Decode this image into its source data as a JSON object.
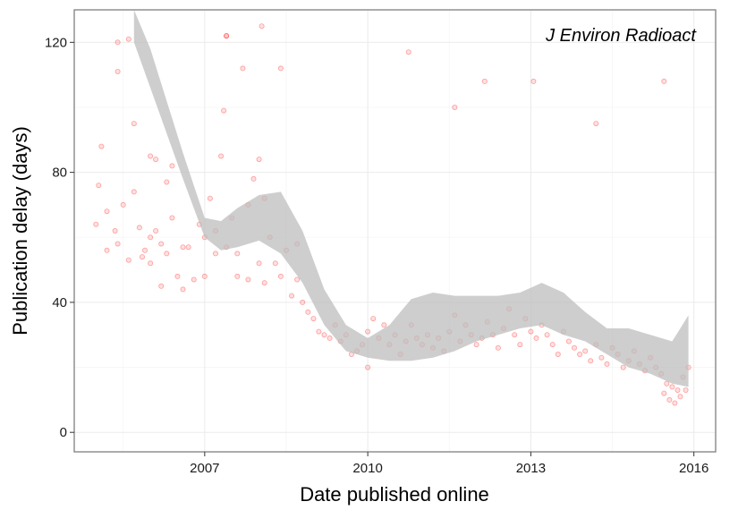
{
  "chart_data": {
    "type": "scatter",
    "title": "",
    "annotation": "J Environ Radioact",
    "xlabel": "Date published online",
    "ylabel": "Publication delay (days)",
    "xlim": [
      2004.6,
      2016.4
    ],
    "ylim": [
      -6,
      130
    ],
    "x_ticks": [
      2007,
      2010,
      2013,
      2016
    ],
    "x_tick_labels": [
      "2007",
      "2010",
      "2013",
      "2016"
    ],
    "y_ticks": [
      0,
      40,
      80,
      120
    ],
    "y_tick_labels": [
      "0",
      "40",
      "80",
      "120"
    ],
    "grid": true,
    "legend": "none",
    "colors": {
      "points": "#ff0000",
      "ribbon": "#bdbdbd",
      "panel_border": "#7f7f7f",
      "grid": "#ebebeb"
    },
    "smooth": {
      "x": [
        2005.7,
        2006.0,
        2006.3,
        2006.6,
        2007.0,
        2007.3,
        2007.6,
        2008.0,
        2008.4,
        2008.8,
        2009.2,
        2009.6,
        2010.0,
        2010.4,
        2010.8,
        2011.2,
        2011.6,
        2012.0,
        2012.4,
        2012.8,
        2013.2,
        2013.6,
        2014.0,
        2014.4,
        2014.8,
        2015.2,
        2015.6,
        2015.9
      ],
      "lower": [
        120,
        106,
        92,
        78,
        60,
        56,
        57,
        59,
        55,
        46,
        33,
        25,
        23,
        22,
        22,
        23,
        25,
        28,
        30,
        32,
        33,
        30,
        28,
        24,
        20,
        18,
        15,
        14
      ],
      "upper": [
        130,
        118,
        102,
        86,
        66,
        65,
        69,
        73,
        74,
        62,
        44,
        33,
        29,
        33,
        41,
        43,
        42,
        42,
        42,
        43,
        46,
        43,
        37,
        32,
        32,
        30,
        28,
        36
      ]
    },
    "series": [
      {
        "x": [
          2005.0,
          2005.05,
          2005.1,
          2005.2,
          2005.2,
          2005.35,
          2005.4,
          2005.4,
          2005.4,
          2005.5,
          2005.6,
          2005.6,
          2005.7,
          2005.7,
          2005.8,
          2005.85,
          2005.9,
          2006.0,
          2006.0,
          2006.1,
          2006.1,
          2006.2,
          2006.2,
          2006.3,
          2006.3,
          2006.4,
          2006.5,
          2006.6,
          2006.6,
          2006.7,
          2006.8,
          2006.9,
          2007.0,
          2007.0,
          2007.1,
          2007.2,
          2007.2,
          2007.3,
          2007.35,
          2007.4,
          2007.4,
          2007.5,
          2007.6,
          2007.6,
          2007.7,
          2007.8,
          2007.8,
          2007.9,
          2008.0,
          2008.0,
          2008.1,
          2008.1,
          2008.2,
          2008.3,
          2008.4,
          2008.4,
          2008.5,
          2008.6,
          2008.7,
          2008.7,
          2008.8,
          2008.9,
          2009.0,
          2009.1,
          2009.2,
          2009.3,
          2009.4,
          2009.5,
          2009.6,
          2009.7,
          2009.8,
          2009.9,
          2010.0,
          2010.0,
          2010.1,
          2010.2,
          2010.3,
          2010.4,
          2010.5,
          2010.6,
          2010.7,
          2010.8,
          2010.9,
          2011.0,
          2011.1,
          2011.2,
          2011.3,
          2011.4,
          2011.5,
          2011.6,
          2011.7,
          2011.8,
          2011.9,
          2012.0,
          2012.1,
          2012.2,
          2012.3,
          2012.4,
          2012.5,
          2012.6,
          2012.7,
          2012.8,
          2012.9,
          2013.0,
          2013.1,
          2013.2,
          2013.3,
          2013.4,
          2013.5,
          2013.6,
          2013.7,
          2013.8,
          2013.9,
          2014.0,
          2014.1,
          2014.2,
          2014.3,
          2014.4,
          2014.5,
          2014.6,
          2014.7,
          2014.8,
          2014.9,
          2015.0,
          2015.1,
          2015.2,
          2015.3,
          2015.4,
          2015.45,
          2015.5,
          2015.55,
          2015.6,
          2015.65,
          2015.7,
          2015.75,
          2015.8,
          2015.85,
          2015.9,
          2008.05,
          2007.4,
          2010.75,
          2011.6,
          2012.15,
          2015.45,
          2013.05,
          2014.2,
          2006.0,
          2006.4
        ],
        "y": [
          64,
          76,
          88,
          68,
          56,
          62,
          120,
          111,
          58,
          70,
          121,
          53,
          74,
          95,
          63,
          54,
          56,
          60,
          52,
          84,
          62,
          58,
          45,
          77,
          55,
          66,
          48,
          44,
          57,
          57,
          47,
          64,
          60,
          48,
          72,
          55,
          62,
          85,
          99,
          122,
          57,
          66,
          55,
          48,
          112,
          70,
          47,
          78,
          84,
          52,
          72,
          46,
          60,
          52,
          112,
          48,
          56,
          42,
          58,
          47,
          40,
          37,
          35,
          31,
          30,
          29,
          33,
          28,
          30,
          24,
          25,
          27,
          31,
          20,
          35,
          29,
          33,
          27,
          30,
          24,
          28,
          33,
          29,
          27,
          30,
          26,
          29,
          25,
          31,
          36,
          28,
          33,
          30,
          27,
          29,
          34,
          30,
          26,
          32,
          38,
          30,
          27,
          35,
          31,
          29,
          33,
          30,
          27,
          24,
          31,
          28,
          26,
          24,
          25,
          22,
          27,
          23,
          21,
          26,
          24,
          20,
          22,
          25,
          21,
          19,
          23,
          20,
          18,
          12,
          15,
          10,
          14,
          9,
          13,
          11,
          17,
          13,
          20,
          125,
          122,
          117,
          100,
          108,
          108,
          108,
          95,
          85,
          82
        ]
      }
    ]
  }
}
